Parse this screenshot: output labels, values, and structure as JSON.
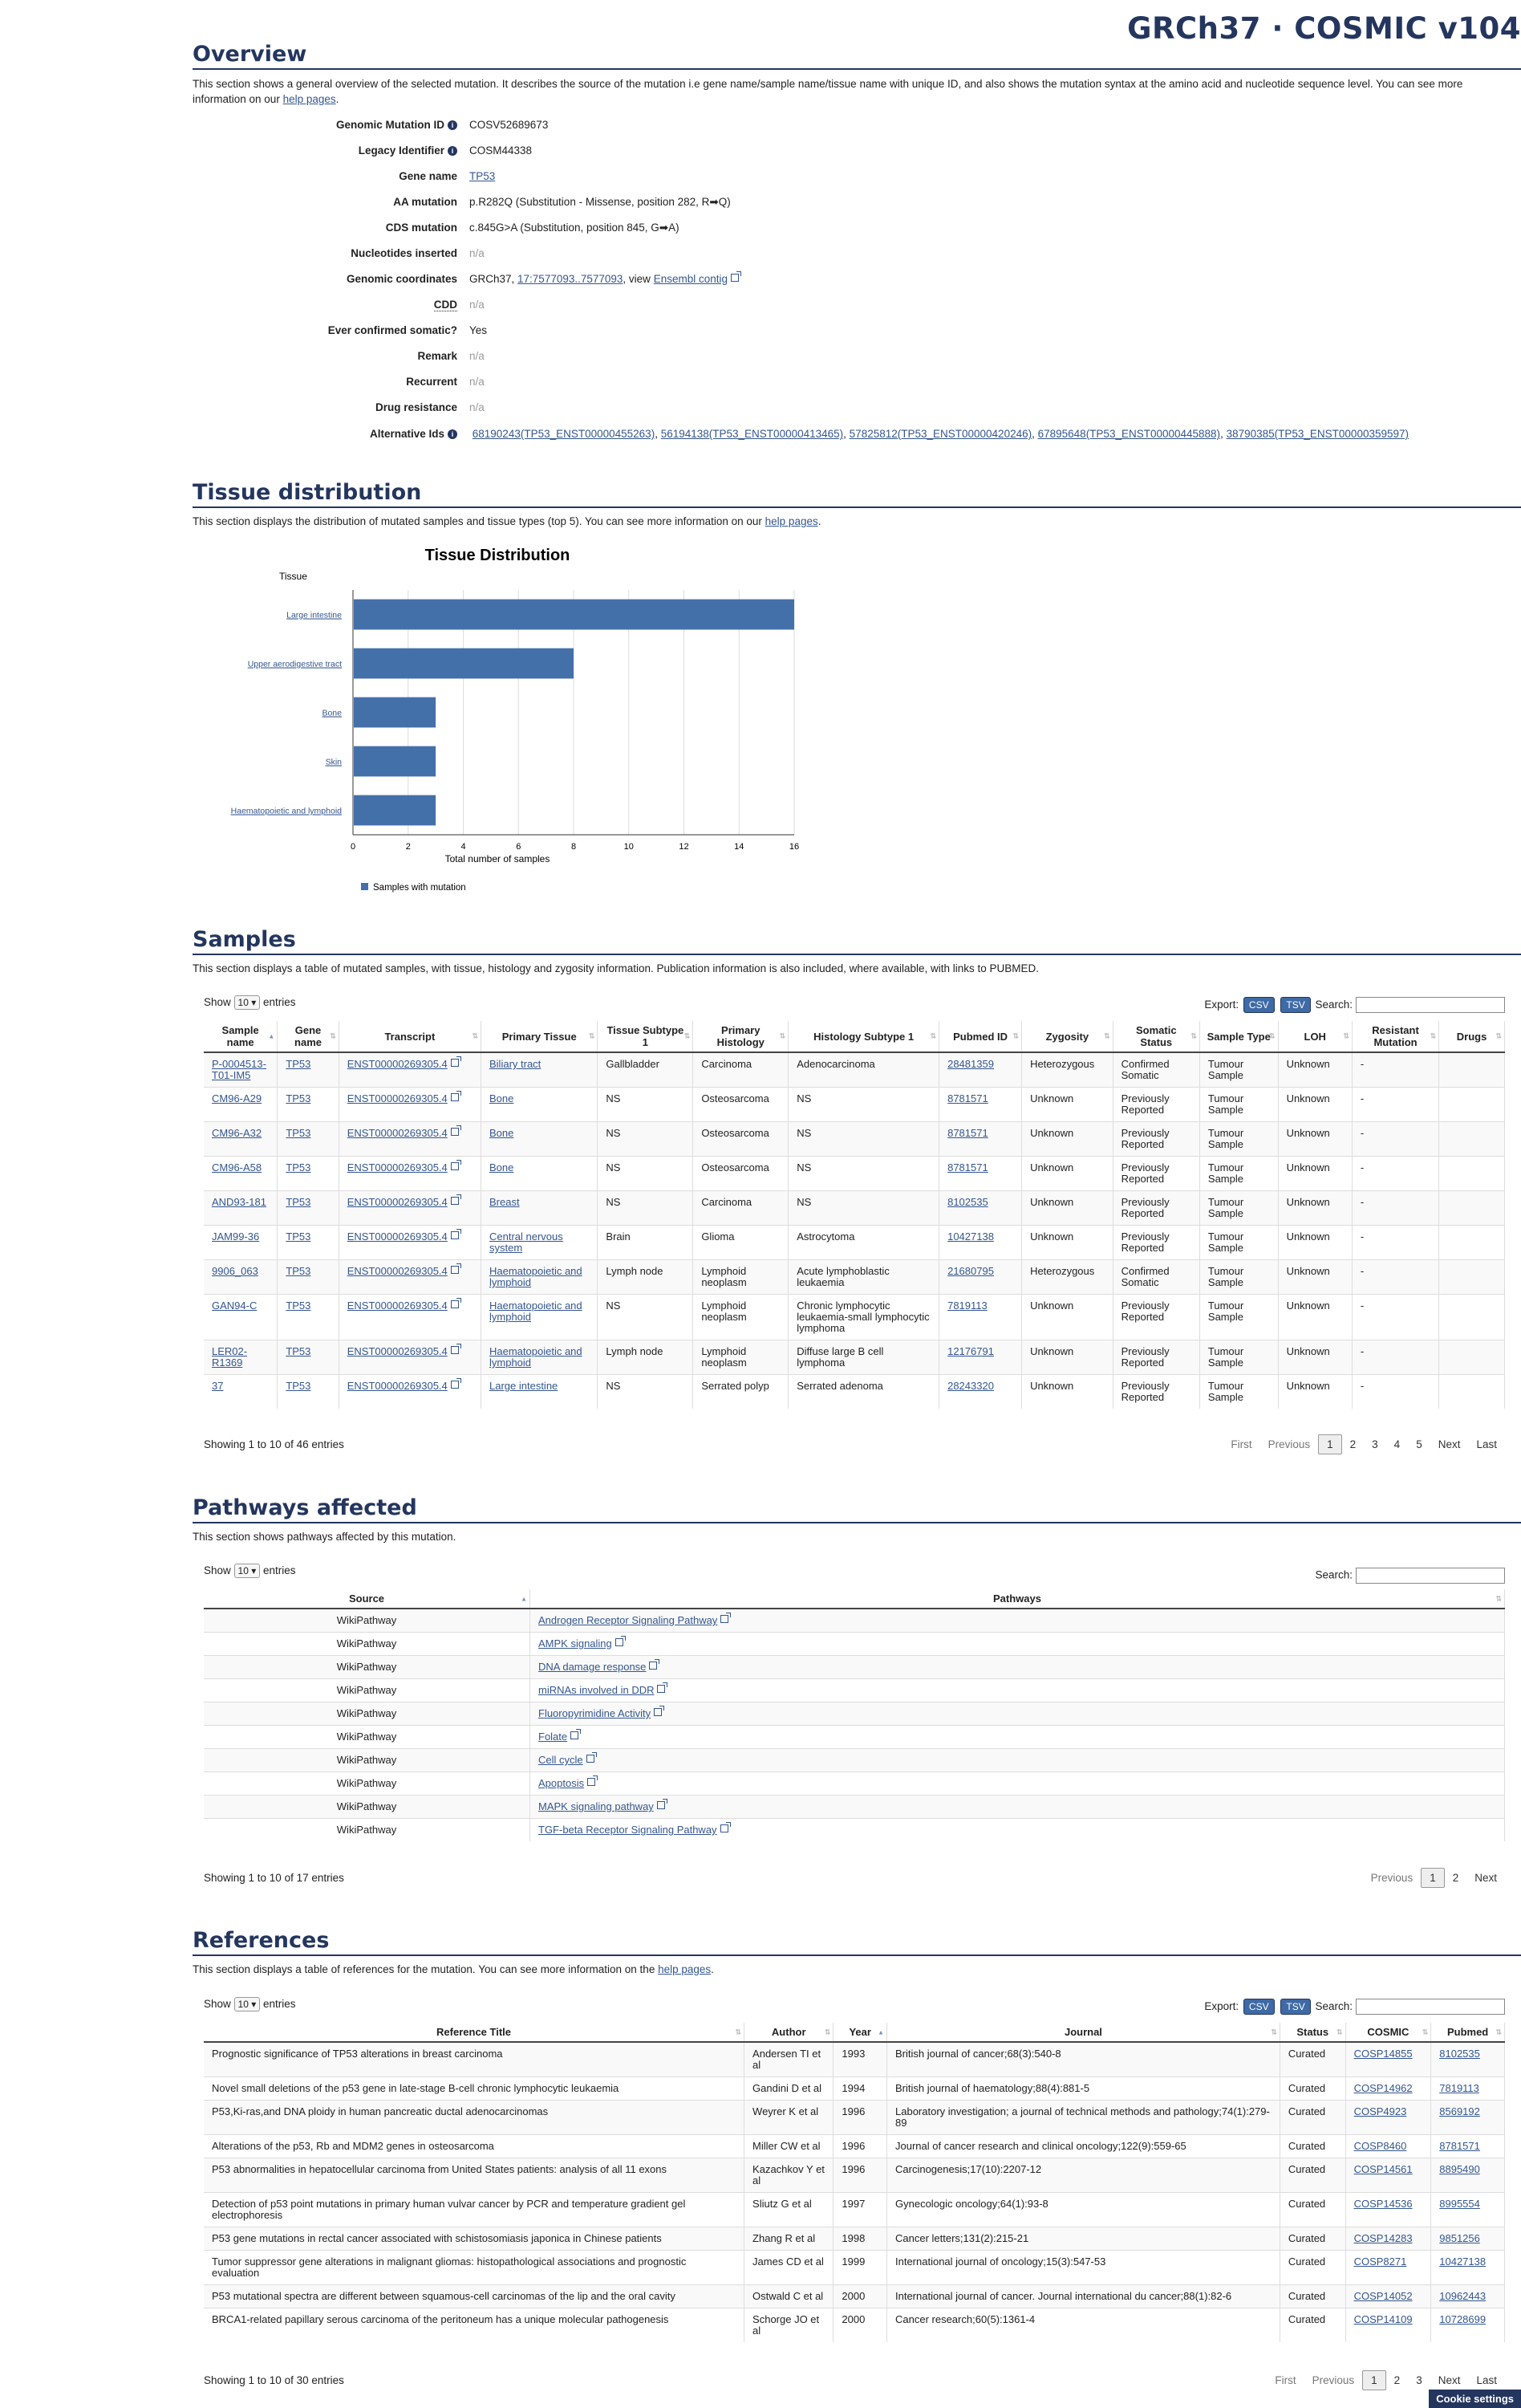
{
  "header": {
    "brand": "GRCh37 · COSMIC v104"
  },
  "overview": {
    "title": "Overview",
    "desc": "This section shows a general overview of the selected mutation. It describes the source of the mutation i.e gene name/sample name/tissue name with unique ID, and also shows the mutation syntax at the amino acid and nucleotide sequence level. You can see more information on our",
    "help": "help pages",
    "fields": {
      "gmid_label": "Genomic Mutation ID",
      "gmid": "COSV52689673",
      "legacy_label": "Legacy Identifier",
      "legacy": "COSM44338",
      "gene_label": "Gene name",
      "gene": "TP53",
      "aa_label": "AA mutation",
      "aa": "p.R282Q (Substitution - Missense, position 282, R➡Q)",
      "cds_label": "CDS mutation",
      "cds": "c.845G>A (Substitution, position 845, G➡A)",
      "nuc_label": "Nucleotides inserted",
      "nuc": "n/a",
      "coord_label": "Genomic coordinates",
      "coord_prefix": "GRCh37, ",
      "coord_link": "17:7577093..7577093",
      "coord_mid": ", view ",
      "coord_ens": "Ensembl contig",
      "cdd_label": "CDD",
      "cdd": "n/a",
      "somatic_label": "Ever confirmed somatic?",
      "somatic": "Yes",
      "remark_label": "Remark",
      "remark": "n/a",
      "recurrent_label": "Recurrent",
      "recurrent": "n/a",
      "drug_label": "Drug resistance",
      "drug": "n/a",
      "alt_label": "Alternative Ids",
      "alt": [
        "68190243(TP53_ENST00000455263)",
        "56194138(TP53_ENST00000413465)",
        "57825812(TP53_ENST00000420246)",
        "67895648(TP53_ENST00000445888)",
        "38790385(TP53_ENST00000359597)"
      ]
    }
  },
  "tissue": {
    "title": "Tissue distribution",
    "desc": "This section displays the distribution of mutated samples and tissue types (top 5). You can see more information on our",
    "help": "help pages",
    "desc_end": "."
  },
  "chart_data": {
    "type": "bar",
    "orientation": "horizontal",
    "title": "Tissue Distribution",
    "ylabel": "Tissue",
    "xlabel": "Total number of samples",
    "categories": [
      "Large intestine",
      "Upper aerodigestive tract",
      "Bone",
      "Skin",
      "Haematopoietic and lymphoid"
    ],
    "series": [
      {
        "name": "Samples with mutation",
        "values": [
          16,
          8,
          3,
          3,
          3
        ],
        "color": "#4470aa"
      }
    ],
    "xlim": [
      0,
      16
    ],
    "xticks": [
      "0",
      "2",
      "4",
      "6",
      "8",
      "10",
      "12",
      "14",
      "16"
    ],
    "grid": true,
    "legend": "bottom-left"
  },
  "samples": {
    "title": "Samples",
    "desc": "This section displays a table of mutated samples, with tissue, histology and zygosity information. Publication information is also included, where available, with links to PUBMED.",
    "show": "Show",
    "entries_val": "10",
    "entries": "entries",
    "export": "Export:",
    "csv": "CSV",
    "tsv": "TSV",
    "search": "Search:",
    "columns": [
      "Sample name",
      "Gene name",
      "Transcript",
      "Primary Tissue",
      "Tissue Subtype 1",
      "Primary Histology",
      "Histology Subtype 1",
      "Pubmed ID",
      "Zygosity",
      "Somatic Status",
      "Sample Type",
      "LOH",
      "Resistant Mutation",
      "Drugs"
    ],
    "rows": [
      [
        "P-0004513-T01-IM5",
        "TP53",
        "ENST00000269305.4",
        "Biliary tract",
        "Gallbladder",
        "Carcinoma",
        "Adenocarcinoma",
        "28481359",
        "Heterozygous",
        "Confirmed Somatic",
        "Tumour Sample",
        "Unknown",
        "-",
        ""
      ],
      [
        "CM96-A29",
        "TP53",
        "ENST00000269305.4",
        "Bone",
        "NS",
        "Osteosarcoma",
        "NS",
        "8781571",
        "Unknown",
        "Previously Reported",
        "Tumour Sample",
        "Unknown",
        "-",
        ""
      ],
      [
        "CM96-A32",
        "TP53",
        "ENST00000269305.4",
        "Bone",
        "NS",
        "Osteosarcoma",
        "NS",
        "8781571",
        "Unknown",
        "Previously Reported",
        "Tumour Sample",
        "Unknown",
        "-",
        ""
      ],
      [
        "CM96-A58",
        "TP53",
        "ENST00000269305.4",
        "Bone",
        "NS",
        "Osteosarcoma",
        "NS",
        "8781571",
        "Unknown",
        "Previously Reported",
        "Tumour Sample",
        "Unknown",
        "-",
        ""
      ],
      [
        "AND93-181",
        "TP53",
        "ENST00000269305.4",
        "Breast",
        "NS",
        "Carcinoma",
        "NS",
        "8102535",
        "Unknown",
        "Previously Reported",
        "Tumour Sample",
        "Unknown",
        "-",
        ""
      ],
      [
        "JAM99-36",
        "TP53",
        "ENST00000269305.4",
        "Central nervous system",
        "Brain",
        "Glioma",
        "Astrocytoma",
        "10427138",
        "Unknown",
        "Previously Reported",
        "Tumour Sample",
        "Unknown",
        "-",
        ""
      ],
      [
        "9906_063",
        "TP53",
        "ENST00000269305.4",
        "Haematopoietic and lymphoid",
        "Lymph node",
        "Lymphoid neoplasm",
        "Acute lymphoblastic leukaemia",
        "21680795",
        "Heterozygous",
        "Confirmed Somatic",
        "Tumour Sample",
        "Unknown",
        "-",
        ""
      ],
      [
        "GAN94-C",
        "TP53",
        "ENST00000269305.4",
        "Haematopoietic and lymphoid",
        "NS",
        "Lymphoid neoplasm",
        "Chronic lymphocytic leukaemia-small lymphocytic lymphoma",
        "7819113",
        "Unknown",
        "Previously Reported",
        "Tumour Sample",
        "Unknown",
        "-",
        ""
      ],
      [
        "LER02-R1369",
        "TP53",
        "ENST00000269305.4",
        "Haematopoietic and lymphoid",
        "Lymph node",
        "Lymphoid neoplasm",
        "Diffuse large B cell lymphoma",
        "12176791",
        "Unknown",
        "Previously Reported",
        "Tumour Sample",
        "Unknown",
        "-",
        ""
      ],
      [
        "37",
        "TP53",
        "ENST00000269305.4",
        "Large intestine",
        "NS",
        "Serrated polyp",
        "Serrated adenoma",
        "28243320",
        "Unknown",
        "Previously Reported",
        "Tumour Sample",
        "Unknown",
        "-",
        ""
      ]
    ],
    "showing": "Showing 1 to 10 of 46 entries",
    "pager": [
      "First",
      "Previous",
      "1",
      "2",
      "3",
      "4",
      "5",
      "Next",
      "Last"
    ]
  },
  "pathways": {
    "title": "Pathways affected",
    "desc": "This section shows pathways affected by this mutation.",
    "show": "Show",
    "entries_val": "10",
    "entries": "entries",
    "search": "Search:",
    "columns": [
      "Source",
      "Pathways"
    ],
    "rows": [
      [
        "WikiPathway",
        "Androgen Receptor Signaling Pathway"
      ],
      [
        "WikiPathway",
        "AMPK signaling"
      ],
      [
        "WikiPathway",
        "DNA damage response"
      ],
      [
        "WikiPathway",
        "miRNAs involved in DDR"
      ],
      [
        "WikiPathway",
        "Fluoropyrimidine Activity"
      ],
      [
        "WikiPathway",
        "Folate"
      ],
      [
        "WikiPathway",
        "Cell cycle"
      ],
      [
        "WikiPathway",
        "Apoptosis"
      ],
      [
        "WikiPathway",
        "MAPK signaling pathway"
      ],
      [
        "WikiPathway",
        "TGF-beta Receptor Signaling Pathway"
      ]
    ],
    "showing": "Showing 1 to 10 of 17 entries",
    "pager": [
      "Previous",
      "1",
      "2",
      "Next"
    ]
  },
  "references": {
    "title": "References",
    "desc": "This section displays a table of references for the mutation. You can see more information on the",
    "help": "help pages",
    "show": "Show",
    "entries_val": "10",
    "entries": "entries",
    "export": "Export:",
    "csv": "CSV",
    "tsv": "TSV",
    "search": "Search:",
    "columns": [
      "Reference Title",
      "Author",
      "Year",
      "Journal",
      "Status",
      "COSMIC",
      "Pubmed"
    ],
    "rows": [
      [
        "Prognostic significance of TP53 alterations in breast carcinoma",
        "Andersen TI et al",
        "1993",
        "British journal of cancer;68(3):540-8",
        "Curated",
        "COSP14855",
        "8102535"
      ],
      [
        "Novel small deletions of the p53 gene in late-stage B-cell chronic lymphocytic leukaemia",
        "Gandini D et al",
        "1994",
        "British journal of haematology;88(4):881-5",
        "Curated",
        "COSP14962",
        "7819113"
      ],
      [
        "P53,Ki-ras,and DNA ploidy in human pancreatic ductal adenocarcinomas",
        "Weyrer K et al",
        "1996",
        "Laboratory investigation; a journal of technical methods and pathology;74(1):279-89",
        "Curated",
        "COSP4923",
        "8569192"
      ],
      [
        "Alterations of the p53, Rb and MDM2 genes in osteosarcoma",
        "Miller CW et al",
        "1996",
        "Journal of cancer research and clinical oncology;122(9):559-65",
        "Curated",
        "COSP8460",
        "8781571"
      ],
      [
        "P53 abnormalities in hepatocellular carcinoma from United States patients: analysis of all 11 exons",
        "Kazachkov Y et al",
        "1996",
        "Carcinogenesis;17(10):2207-12",
        "Curated",
        "COSP14561",
        "8895490"
      ],
      [
        "Detection of p53 point mutations in primary human vulvar cancer by PCR and temperature gradient gel electrophoresis",
        "Sliutz G et al",
        "1997",
        "Gynecologic oncology;64(1):93-8",
        "Curated",
        "COSP14536",
        "8995554"
      ],
      [
        "P53 gene mutations in rectal cancer associated with schistosomiasis japonica in Chinese patients",
        "Zhang R et al",
        "1998",
        "Cancer letters;131(2):215-21",
        "Curated",
        "COSP14283",
        "9851256"
      ],
      [
        "Tumor suppressor gene alterations in malignant gliomas: histopathological associations and prognostic evaluation",
        "James CD et al",
        "1999",
        "International journal of oncology;15(3):547-53",
        "Curated",
        "COSP8271",
        "10427138"
      ],
      [
        "P53 mutational spectra are different between squamous-cell carcinomas of the lip and the oral cavity",
        "Ostwald C et al",
        "2000",
        "International journal of cancer. Journal international du cancer;88(1):82-6",
        "Curated",
        "COSP14052",
        "10962443"
      ],
      [
        "BRCA1-related papillary serous carcinoma of the peritoneum has a unique molecular pathogenesis",
        "Schorge JO et al",
        "2000",
        "Cancer research;60(5):1361-4",
        "Curated",
        "COSP14109",
        "10728699"
      ]
    ],
    "showing": "Showing 1 to 10 of 30 entries",
    "pager": [
      "First",
      "Previous",
      "1",
      "2",
      "3",
      "Next",
      "Last"
    ]
  },
  "cookie": "Cookie settings"
}
